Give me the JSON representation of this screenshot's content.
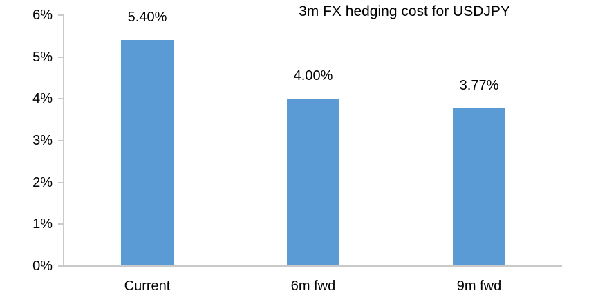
{
  "chart_data": {
    "type": "bar",
    "title": "3m FX hedging cost for USDJPY",
    "categories": [
      "Current",
      "6m fwd",
      "9m fwd"
    ],
    "values": [
      5.4,
      4.0,
      3.77
    ],
    "value_labels": [
      "5.40%",
      "4.00%",
      "3.77%"
    ],
    "y_tick_labels": [
      "0%",
      "1%",
      "2%",
      "3%",
      "4%",
      "5%",
      "6%"
    ],
    "y_tick_values": [
      0,
      1,
      2,
      3,
      4,
      5,
      6
    ],
    "ylim": [
      0,
      6
    ],
    "xlabel": "",
    "ylabel": "",
    "grid": false,
    "legend_position": "none",
    "bar_color": "#5B9BD5",
    "axis_color": "#C9C9C9",
    "text_color": "#000000"
  }
}
